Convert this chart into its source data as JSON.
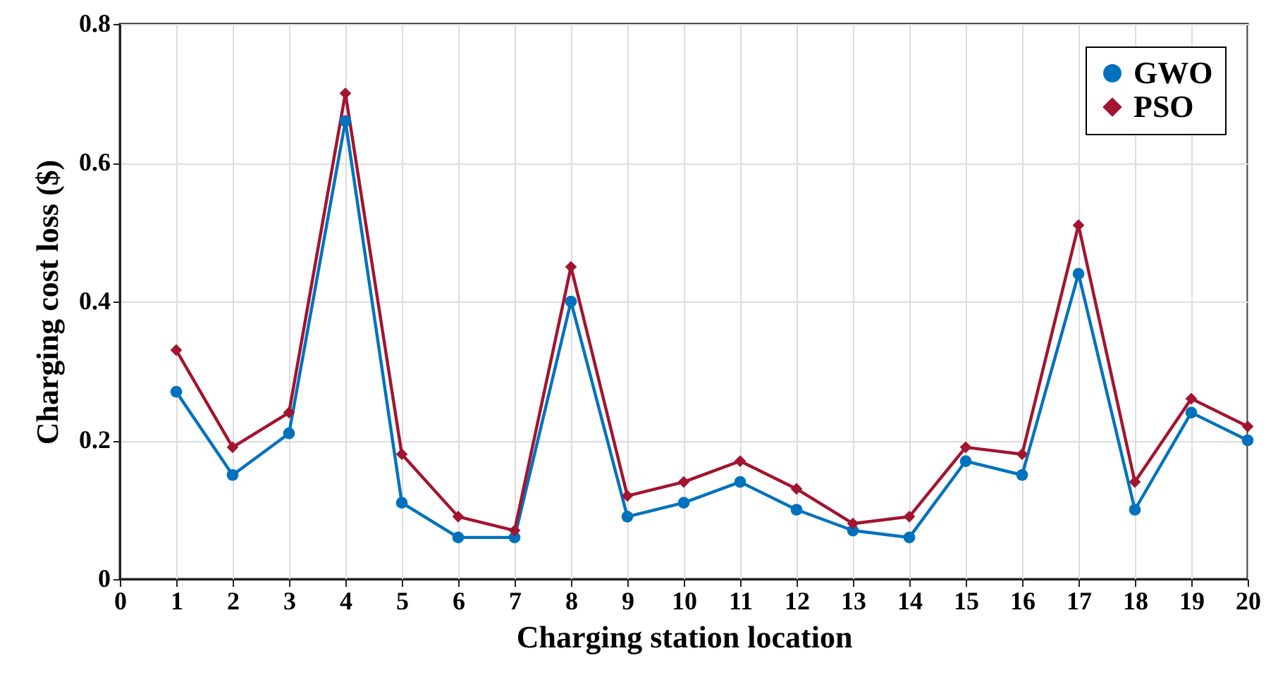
{
  "chart_data": {
    "type": "line",
    "xlabel": "Charging station location",
    "ylabel": "Charging cost loss ($)",
    "x": [
      1,
      2,
      3,
      4,
      5,
      6,
      7,
      8,
      9,
      10,
      11,
      12,
      13,
      14,
      15,
      16,
      17,
      18,
      19,
      20
    ],
    "series": [
      {
        "name": "GWO",
        "color": "#0072bd",
        "marker": "circle",
        "values": [
          0.27,
          0.15,
          0.21,
          0.66,
          0.11,
          0.06,
          0.06,
          0.4,
          0.09,
          0.11,
          0.14,
          0.1,
          0.07,
          0.06,
          0.17,
          0.15,
          0.44,
          0.1,
          0.24,
          0.2
        ]
      },
      {
        "name": "PSO",
        "color": "#a2142f",
        "marker": "diamond",
        "values": [
          0.33,
          0.19,
          0.24,
          0.7,
          0.18,
          0.09,
          0.07,
          0.45,
          0.12,
          0.14,
          0.17,
          0.13,
          0.08,
          0.09,
          0.19,
          0.18,
          0.51,
          0.14,
          0.26,
          0.22
        ]
      }
    ],
    "xlim": [
      0,
      20
    ],
    "xticks": [
      0,
      1,
      2,
      3,
      4,
      5,
      6,
      7,
      8,
      9,
      10,
      11,
      12,
      13,
      14,
      15,
      16,
      17,
      18,
      19,
      20
    ],
    "ylim": [
      0,
      0.8
    ],
    "yticks": [
      0,
      0.2,
      0.4,
      0.6,
      0.8
    ],
    "grid": true,
    "legend": "top right",
    "line_style": "solid"
  }
}
